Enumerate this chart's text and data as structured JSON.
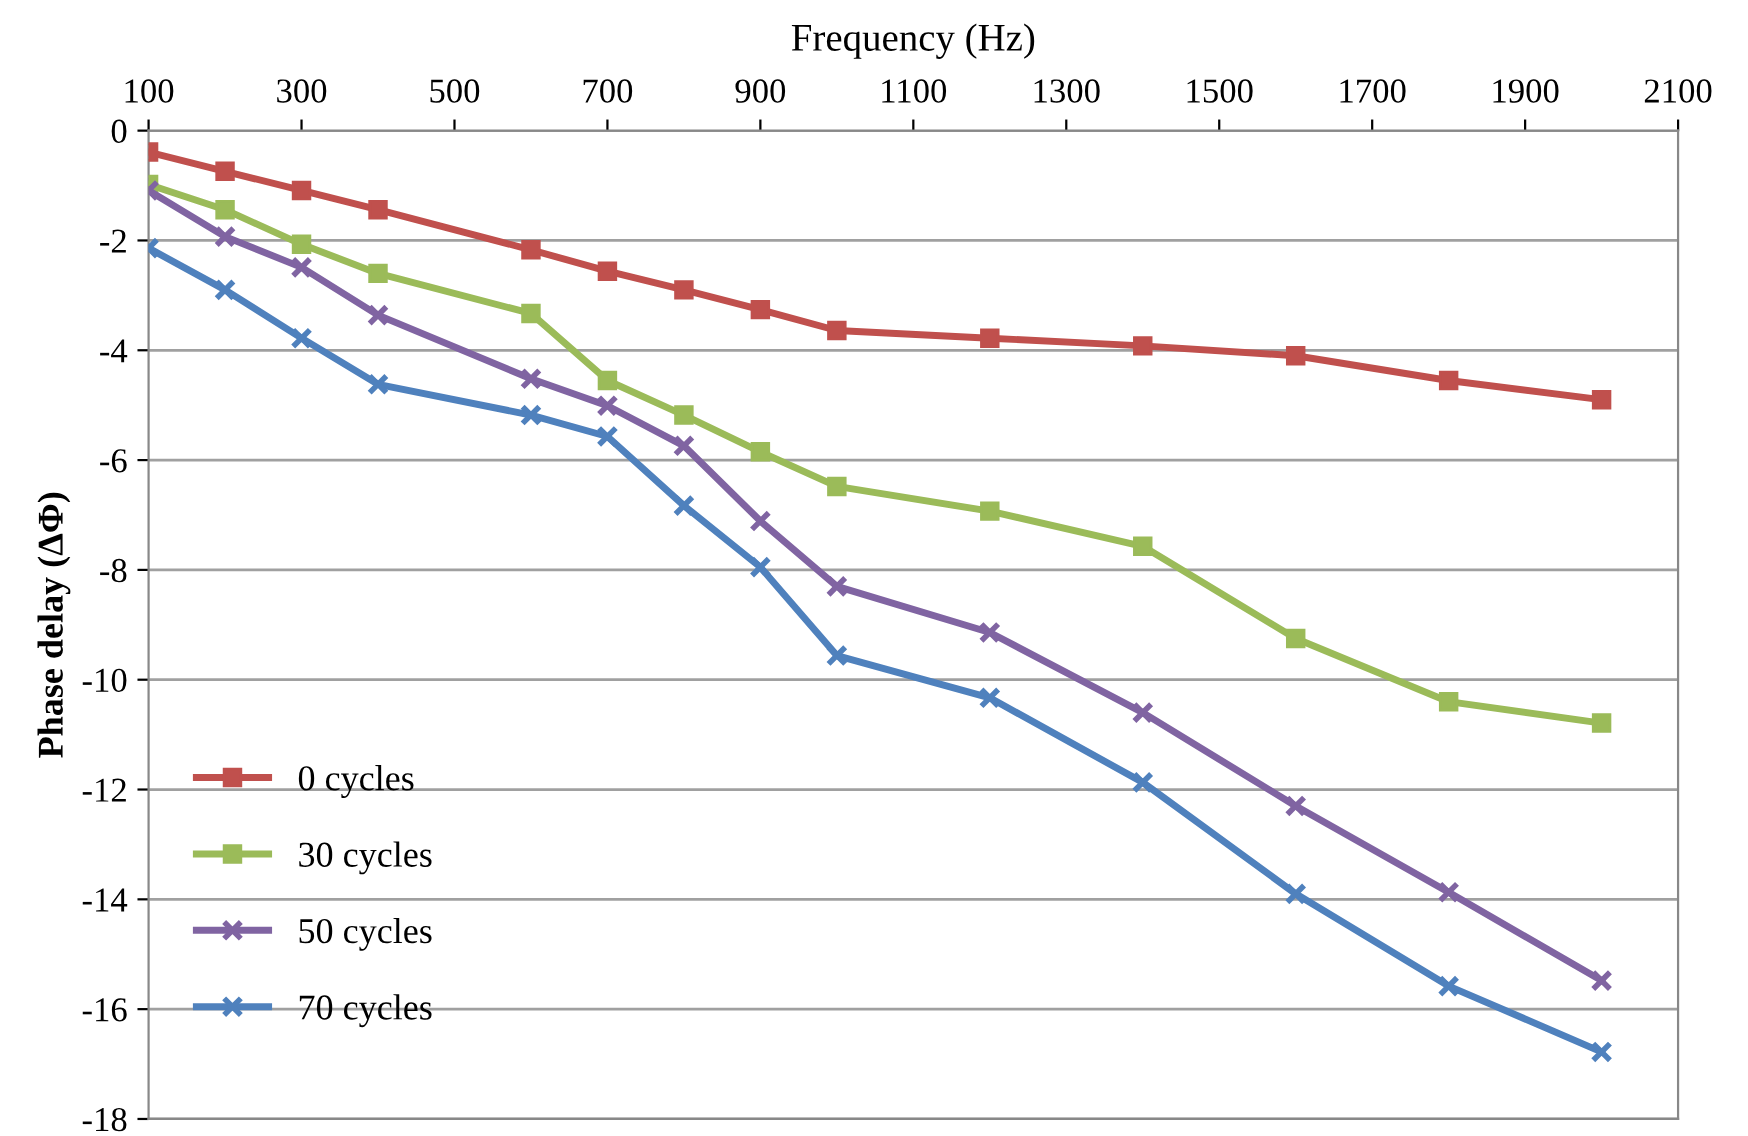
{
  "chart_data": {
    "type": "line",
    "xlabel": "Frequency (Hz)",
    "ylabel": "Phase delay (ΔΦ)",
    "xlim": [
      100,
      2100
    ],
    "xticks": [
      100,
      300,
      500,
      700,
      900,
      1100,
      1300,
      1500,
      1700,
      1900,
      2100
    ],
    "ylim": [
      -18,
      0
    ],
    "yticks": [
      0,
      -2,
      -4,
      -6,
      -8,
      -10,
      -12,
      -14,
      -16,
      -18
    ],
    "grid": "y",
    "legend": "bottom left",
    "series": [
      {
        "name": "0 cycles",
        "color": "#c0504d",
        "marker": "square",
        "x": [
          100,
          200,
          300,
          400,
          600,
          700,
          800,
          900,
          1000,
          1200,
          1400,
          1600,
          1800,
          2000
        ],
        "values": [
          -0.39,
          -0.74,
          -1.09,
          -1.44,
          -2.17,
          -2.56,
          -2.9,
          -3.26,
          -3.64,
          -3.78,
          -3.92,
          -4.1,
          -4.55,
          -4.9
        ]
      },
      {
        "name": "30 cycles",
        "color": "#9bbb59",
        "marker": "square",
        "x": [
          100,
          200,
          300,
          400,
          600,
          700,
          800,
          900,
          1000,
          1200,
          1400,
          1600,
          1800,
          2000
        ],
        "values": [
          -0.98,
          -1.44,
          -2.07,
          -2.6,
          -3.33,
          -4.55,
          -5.18,
          -5.85,
          -6.48,
          -6.93,
          -7.57,
          -9.25,
          -10.4,
          -10.79
        ]
      },
      {
        "name": "50 cycles",
        "color": "#8064a2",
        "marker": "cross",
        "x": [
          100,
          200,
          300,
          400,
          600,
          700,
          800,
          900,
          1000,
          1200,
          1400,
          1600,
          1800,
          2000
        ],
        "values": [
          -1.09,
          -1.93,
          -2.49,
          -3.36,
          -4.52,
          -5.01,
          -5.74,
          -7.11,
          -8.3,
          -9.14,
          -10.6,
          -12.3,
          -13.87,
          -15.48
        ]
      },
      {
        "name": "70 cycles",
        "color": "#4f81bd",
        "marker": "cross",
        "x": [
          100,
          200,
          300,
          400,
          600,
          700,
          800,
          900,
          1000,
          1200,
          1400,
          1600,
          1800,
          2000
        ],
        "values": [
          -2.14,
          -2.9,
          -3.78,
          -4.62,
          -5.18,
          -5.57,
          -6.83,
          -7.95,
          -9.56,
          -10.33,
          -11.87,
          -13.9,
          -15.58,
          -16.78
        ]
      }
    ]
  }
}
